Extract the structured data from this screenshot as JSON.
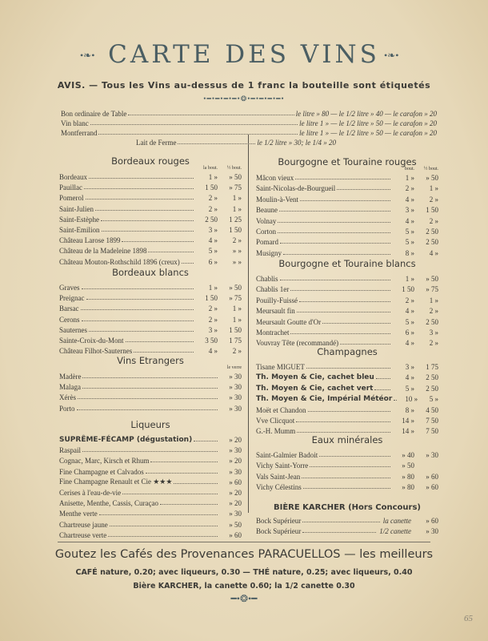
{
  "header": {
    "title": "CARTE DES VINS",
    "notice": "AVIS. — Tous les Vins au-dessus de 1 franc la bouteille sont étiquetés"
  },
  "house_wines": [
    {
      "name": "Bon ordinaire de Table",
      "price": "le litre » 80 — le 1/2 litre » 40 — le carafon » 20"
    },
    {
      "name": "Vin blanc",
      "price": "le litre 1 » — le 1/2 litre » 50 — le carafon » 20"
    },
    {
      "name": "Montferrand",
      "price": "le litre 1 » — le 1/2 litre » 50 — le carafon » 20"
    },
    {
      "name": "Lait de Ferme",
      "price": "le 1/2 litre » 30; le 1/4 » 20"
    }
  ],
  "left_sections": [
    {
      "title": "Bordeaux rouges",
      "columns": [
        "la bout.",
        "½ bout."
      ],
      "rows": [
        [
          "Bordeaux",
          "1 »",
          "» 50"
        ],
        [
          "Pauillac",
          "1 50",
          "» 75"
        ],
        [
          "Pomerol",
          "2 »",
          "1 »"
        ],
        [
          "Saint-Julien",
          "2 »",
          "1 »"
        ],
        [
          "Saint-Estèphe",
          "2 50",
          "1 25"
        ],
        [
          "Saint-Emilion",
          "3 »",
          "1 50"
        ],
        [
          "Château Larose 1899",
          "4 »",
          "2 »"
        ],
        [
          "Château de la Madeleine 1898",
          "5 »",
          "» »"
        ],
        [
          "Château Mouton-Rothschild 1896 (creux)",
          "6 »",
          "» »"
        ]
      ]
    },
    {
      "title": "Bordeaux blancs",
      "rows": [
        [
          "Graves",
          "1 »",
          "» 50"
        ],
        [
          "Preignac",
          "1 50",
          "» 75"
        ],
        [
          "Barsac",
          "2 »",
          "1 »"
        ],
        [
          "Cerons",
          "2 »",
          "1 »"
        ],
        [
          "Sauternes",
          "3 »",
          "1 50"
        ],
        [
          "Sainte-Croix-du-Mont",
          "3 50",
          "1 75"
        ],
        [
          "Château Filhot-Sauternes",
          "4 »",
          "2 »"
        ]
      ]
    },
    {
      "title": "Vins Etrangers",
      "columns": [
        "le verre"
      ],
      "rows": [
        [
          "Madère",
          "» 30"
        ],
        [
          "Malaga",
          "» 30"
        ],
        [
          "Xérès",
          "» 30"
        ],
        [
          "Porto",
          "» 30"
        ]
      ]
    },
    {
      "title": "Liqueurs",
      "rows": [
        [
          "SUPRÊME-FÉCAMP (dégustation)",
          "» 20"
        ],
        [
          "Raspail",
          "» 30"
        ],
        [
          "Cognac, Marc, Kirsch et Rhum",
          "» 20"
        ],
        [
          "Fine Champagne et Calvados",
          "» 30"
        ],
        [
          "Fine Champagne Renault et Cie ★★★",
          "» 60"
        ],
        [
          "Cerises à l'eau-de-vie",
          "» 20"
        ],
        [
          "Anisette, Menthe, Cassis, Curaçao",
          "» 20"
        ],
        [
          "Menthe verte",
          "» 30"
        ],
        [
          "Chartreuse jaune",
          "» 50"
        ],
        [
          "Chartreuse verte",
          "» 60"
        ]
      ]
    }
  ],
  "right_sections": [
    {
      "title": "Bourgogne et Touraine rouges",
      "columns": [
        "bout.",
        "½ bout."
      ],
      "rows": [
        [
          "Mâcon vieux",
          "1 »",
          "» 50"
        ],
        [
          "Saint-Nicolas-de-Bourgueil",
          "2 »",
          "1 »"
        ],
        [
          "Moulin-à-Vent",
          "4 »",
          "2 »"
        ],
        [
          "Beaune",
          "3 »",
          "1 50"
        ],
        [
          "Volnay",
          "4 »",
          "2 »"
        ],
        [
          "Corton",
          "5 »",
          "2 50"
        ],
        [
          "Pomard",
          "5 »",
          "2 50"
        ],
        [
          "Musigny",
          "8 »",
          "4 »"
        ]
      ]
    },
    {
      "title": "Bourgogne et Touraine blancs",
      "rows": [
        [
          "Chablis",
          "1 »",
          "» 50"
        ],
        [
          "Chablis 1er",
          "1 50",
          "» 75"
        ],
        [
          "Pouilly-Fuissé",
          "2 »",
          "1 »"
        ],
        [
          "Meursault fin",
          "4 »",
          "2 »"
        ],
        [
          "Meursault Goutte d'Or",
          "5 »",
          "2 50"
        ],
        [
          "Montrachet",
          "6 »",
          "3 »"
        ],
        [
          "Vouvray Tête (recommandé)",
          "4 »",
          "2 »"
        ]
      ]
    },
    {
      "title": "Champagnes",
      "rows": [
        [
          "Tisane MIGUET",
          "3 »",
          "1 75"
        ],
        [
          "Th. Moyen & Cie, cachet bleu",
          "4 »",
          "2 50"
        ],
        [
          "Th. Moyen & Cie, cachet vert",
          "5 »",
          "2 50"
        ],
        [
          "Th. Moyen & Cie, Impérial Météor",
          "10 »",
          "5 »"
        ],
        [
          "Moët et Chandon",
          "8 »",
          "4 50"
        ],
        [
          "Vve Clicquot",
          "14 »",
          "7 50"
        ],
        [
          "G.-H. Mumm",
          "14 »",
          "7 50"
        ]
      ]
    },
    {
      "title": "Eaux minérales",
      "rows": [
        [
          "Saint-Galmier Badoit",
          "» 40",
          "» 30"
        ],
        [
          "Vichy Saint-Yorre",
          "» 50"
        ],
        [
          "Vals Saint-Jean",
          "» 80",
          "» 60"
        ],
        [
          "Vichy Célestins",
          "» 80",
          "» 60"
        ]
      ]
    }
  ],
  "beer": {
    "title": "BIÈRE KARCHER (Hors Concours)",
    "rows": [
      [
        "Bock Supérieur",
        "la canette",
        "» 60"
      ],
      [
        "Bock Supérieur",
        "1/2 canette",
        "» 30"
      ]
    ]
  },
  "footer": {
    "lines": [
      "Goutez les Cafés des Provenances PARACUELLOS — les meilleurs",
      "CAFÉ nature, 0.20; avec liqueurs, 0.30 — THÉ nature, 0.25; avec liqueurs, 0.40",
      "Bière KARCHER, la canette 0.60; la 1/2 canette 0.30"
    ]
  },
  "page_number": "65"
}
